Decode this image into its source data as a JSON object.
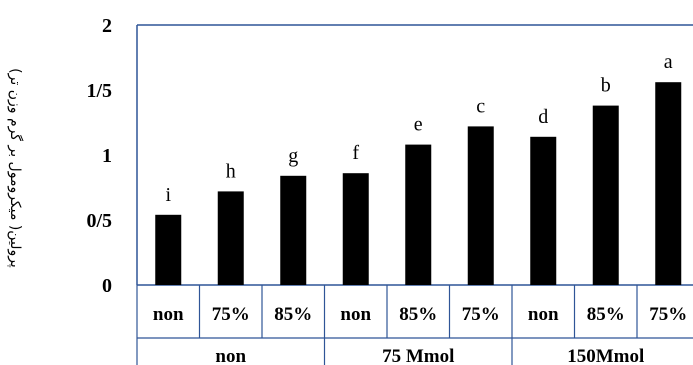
{
  "chart_data": {
    "type": "bar",
    "ylabel": "پرولین( میکرومول بر گرم وزن تر)",
    "ytick_labels": [
      "0",
      "0/5",
      "1",
      "1/5",
      "2"
    ],
    "ylim": [
      0,
      2
    ],
    "categories": [
      "non",
      "75%",
      "85%",
      "non",
      "85%",
      "75%",
      "non",
      "85%",
      "75%"
    ],
    "groups": [
      "non",
      "75 Mmol",
      "150Mmol"
    ],
    "group_sizes": [
      3,
      3,
      3
    ],
    "values": [
      0.54,
      0.72,
      0.84,
      0.86,
      1.08,
      1.22,
      1.14,
      1.38,
      1.56
    ],
    "letters": [
      "i",
      "h",
      "g",
      "f",
      "e",
      "c",
      "d",
      "b",
      "a"
    ],
    "bar_color": "#000000",
    "frame_color": "#2f5597",
    "grid": false
  }
}
